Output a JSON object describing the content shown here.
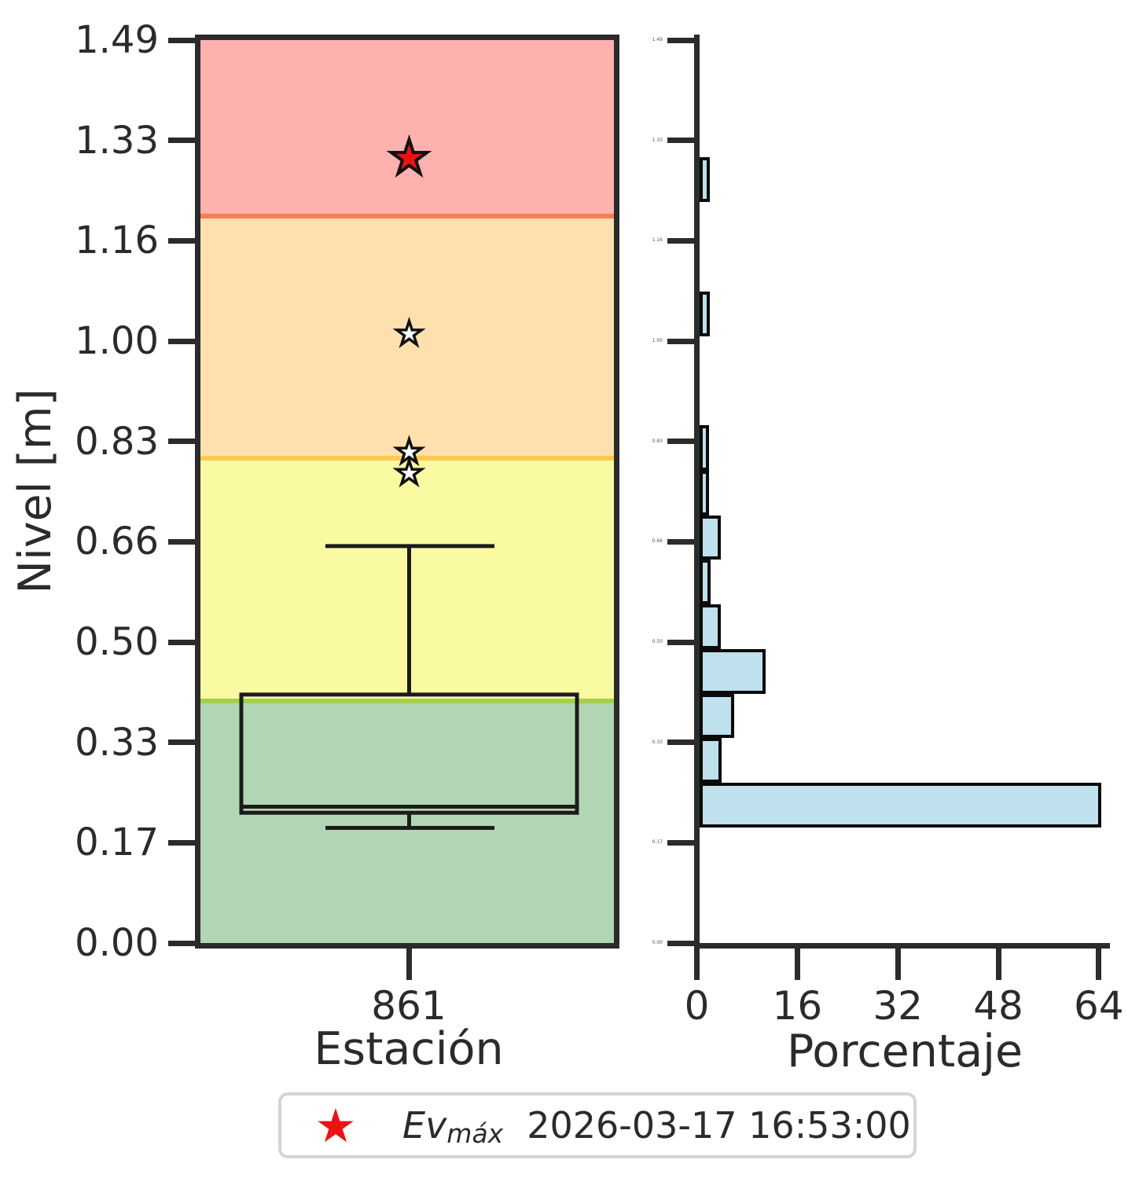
{
  "colors": {
    "spine": "#2b2b2b",
    "text": "#2b2b2b",
    "box_stroke": "#1c1c1c",
    "hist_fill": "#bfe0ed",
    "hist_edge": "#0a0a0a",
    "event_star_fill": "#ee1111",
    "outlier_star_fill": "#ffffff",
    "star_edge": "#111111",
    "legend_border": "#d4d4d4",
    "zone_green": "#b2d6b3",
    "zone_yellow": "#fafaa2",
    "zone_orange": "#fde0ad",
    "zone_red": "#ffb1b0",
    "boundary_green_yellow": "#a5ce4f",
    "boundary_yellow_orange": "#fbc94e",
    "boundary_orange_red": "#fb7c4f"
  },
  "left_panel": {
    "ylabel": "Nivel [m]",
    "xlabel": "Estación",
    "xtick_label": "861",
    "ytick_labels": [
      "1.49",
      "1.33",
      "1.16",
      "1.00",
      "0.83",
      "0.66",
      "0.50",
      "0.33",
      "0.17",
      "0.00"
    ]
  },
  "right_panel": {
    "xlabel": "Porcentaje",
    "xtick_labels": [
      "0",
      "16",
      "32",
      "48",
      "64"
    ],
    "ytick_labels": [
      "1.49",
      "1.33",
      "1.16",
      "1.00",
      "0.83",
      "0.66",
      "0.50",
      "0.33",
      "0.17",
      "0.00"
    ]
  },
  "legend": {
    "marker": "red-star",
    "label_main": "Ev",
    "label_subscript": "máx",
    "timestamp": "2026-03-17 16:53:00"
  },
  "chart_data": [
    {
      "type": "box",
      "panel": "left",
      "title": "",
      "xlabel": "Estación",
      "ylabel": "Nivel [m]",
      "categories": [
        "861"
      ],
      "ylim": [
        0,
        1.49
      ],
      "ytick_values": [
        1.49,
        1.33,
        1.16,
        1.0,
        0.83,
        0.66,
        0.5,
        0.33,
        0.17,
        0.0
      ],
      "box": {
        "whisker_low": 0.19,
        "q1": 0.215,
        "median": 0.225,
        "q3": 0.41,
        "whisker_high": 0.655,
        "outliers": [
          1.005,
          0.81,
          0.775
        ]
      },
      "event_max": {
        "value": 1.295,
        "label": "Ev_máx",
        "datetime": "2026-03-17 16:53:00"
      },
      "alert_zones": [
        {
          "name": "verde",
          "from": 0.0,
          "to": 0.4,
          "fill": "#b2d6b3",
          "boundary_color": "#a5ce4f"
        },
        {
          "name": "amarilla",
          "from": 0.4,
          "to": 0.8,
          "fill": "#fafaa2",
          "boundary_color": "#fbc94e"
        },
        {
          "name": "naranja",
          "from": 0.8,
          "to": 1.2,
          "fill": "#fde0ad",
          "boundary_color": "#fb7c4f"
        },
        {
          "name": "roja",
          "from": 1.2,
          "to": 1.49,
          "fill": "#ffb1b0",
          "boundary_color": null
        }
      ]
    },
    {
      "type": "bar",
      "panel": "right",
      "orientation": "horizontal",
      "xlabel": "Porcentaje",
      "xlim": [
        0,
        65.5
      ],
      "xticks": [
        0,
        16,
        32,
        48,
        64
      ],
      "ylim": [
        0,
        1.49
      ],
      "bars": [
        {
          "from": 0.19,
          "to": 0.264,
          "percent": 64.0
        },
        {
          "from": 0.264,
          "to": 0.338,
          "percent": 3.5
        },
        {
          "from": 0.338,
          "to": 0.411,
          "percent": 5.5
        },
        {
          "from": 0.411,
          "to": 0.485,
          "percent": 10.5
        },
        {
          "from": 0.485,
          "to": 0.559,
          "percent": 3.4
        },
        {
          "from": 0.559,
          "to": 0.633,
          "percent": 1.8
        },
        {
          "from": 0.633,
          "to": 0.706,
          "percent": 3.4
        },
        {
          "from": 0.706,
          "to": 0.78,
          "percent": 1.5
        },
        {
          "from": 0.78,
          "to": 0.854,
          "percent": 1.5
        },
        {
          "from": 1.001,
          "to": 1.075,
          "percent": 1.6
        },
        {
          "from": 1.223,
          "to": 1.297,
          "percent": 1.6
        }
      ]
    }
  ]
}
